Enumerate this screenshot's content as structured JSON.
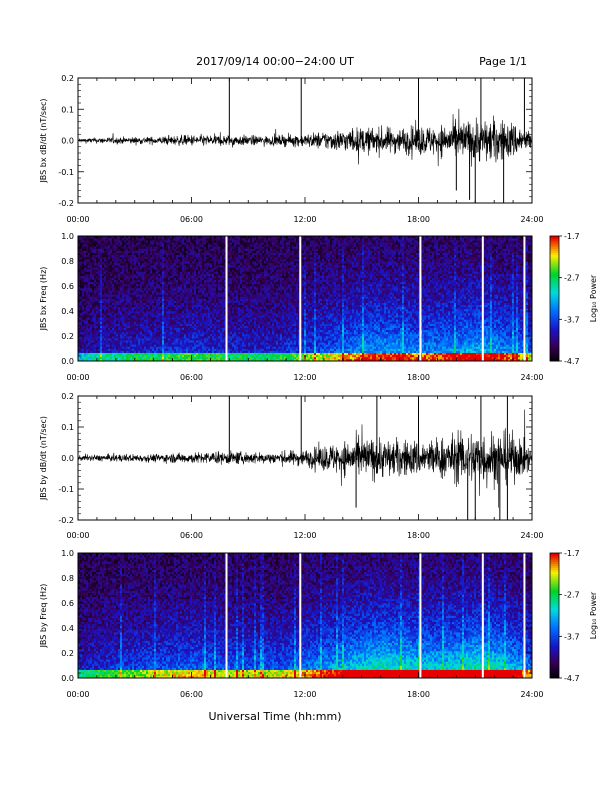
{
  "header": {
    "title": "2017/09/14  00:00−24:00 UT",
    "page": "Page 1/1"
  },
  "xlabel": "Universal Time (hh:mm)",
  "colors": {
    "line": "#000000",
    "background": "#ffffff"
  },
  "chart_data": [
    {
      "type": "line",
      "ylabel": "JBS bx dB/dt (nT/sec)",
      "x_ticks": [
        "00:00",
        "06:00",
        "12:00",
        "18:00",
        "24:00"
      ],
      "xlim": [
        0,
        24
      ],
      "ylim": [
        -0.2,
        0.2
      ],
      "y_ticks": [
        "-0.2",
        "-0.1",
        "0.0",
        "0.1",
        "0.2"
      ],
      "envelope": {
        "hours": [
          0,
          2,
          4,
          6,
          8,
          10,
          12,
          13,
          14,
          15,
          16,
          17,
          18,
          19,
          20,
          21,
          22,
          23,
          24
        ],
        "amplitude": [
          0.012,
          0.018,
          0.02,
          0.03,
          0.03,
          0.025,
          0.035,
          0.05,
          0.06,
          0.07,
          0.07,
          0.07,
          0.08,
          0.08,
          0.1,
          0.12,
          0.12,
          0.1,
          0.05
        ]
      },
      "spikes": [
        {
          "hour": 8.0,
          "y": 0.2
        },
        {
          "hour": 11.8,
          "y": 0.2
        },
        {
          "hour": 18.0,
          "y": 0.2
        },
        {
          "hour": 21.3,
          "y": 0.2
        },
        {
          "hour": 23.6,
          "y": 0.2
        },
        {
          "hour": 20.0,
          "y": -0.16
        },
        {
          "hour": 20.7,
          "y": -0.19
        },
        {
          "hour": 21.0,
          "y": -0.2
        },
        {
          "hour": 22.5,
          "y": -0.2
        }
      ]
    },
    {
      "type": "heatmap",
      "ylabel": "JBS bx Freq (Hz)",
      "x_ticks": [
        "00:00",
        "06:00",
        "12:00",
        "18:00",
        "24:00"
      ],
      "xlim": [
        0,
        24
      ],
      "ylim": [
        0.0,
        1.0
      ],
      "y_ticks": [
        "0.0",
        "0.2",
        "0.4",
        "0.6",
        "0.8",
        "1.0"
      ],
      "colorbar": {
        "label": "Log₁₀ Power",
        "ticks": [
          "-1.7",
          "-2.7",
          "-3.7",
          "-4.7"
        ],
        "range": [
          -4.7,
          -1.7
        ]
      },
      "data_gaps_hours": [
        7.85,
        11.75,
        18.1,
        21.4,
        23.6
      ],
      "activity": {
        "hours": [
          0,
          2,
          4,
          6,
          8,
          10,
          12,
          14,
          15,
          16,
          17,
          18,
          20,
          21,
          22,
          23,
          24
        ],
        "level": [
          0.15,
          0.22,
          0.25,
          0.28,
          0.25,
          0.24,
          0.3,
          0.42,
          0.48,
          0.5,
          0.5,
          0.45,
          0.5,
          0.55,
          0.52,
          0.45,
          0.35
        ]
      }
    },
    {
      "type": "line",
      "ylabel": "JBS by dB/dt (nT/sec)",
      "x_ticks": [
        "00:00",
        "06:00",
        "12:00",
        "18:00",
        "24:00"
      ],
      "xlim": [
        0,
        24
      ],
      "ylim": [
        -0.2,
        0.2
      ],
      "y_ticks": [
        "-0.2",
        "-0.1",
        "0.0",
        "0.1",
        "0.2"
      ],
      "envelope": {
        "hours": [
          0,
          2,
          4,
          6,
          8,
          10,
          12,
          13,
          14,
          15,
          16,
          17,
          18,
          19,
          20,
          21,
          22,
          23,
          24
        ],
        "amplitude": [
          0.015,
          0.02,
          0.022,
          0.03,
          0.035,
          0.03,
          0.045,
          0.07,
          0.09,
          0.11,
          0.11,
          0.1,
          0.1,
          0.11,
          0.13,
          0.15,
          0.15,
          0.13,
          0.06
        ]
      },
      "spikes": [
        {
          "hour": 8.0,
          "y": 0.2
        },
        {
          "hour": 11.8,
          "y": 0.2
        },
        {
          "hour": 15.8,
          "y": 0.2
        },
        {
          "hour": 18.0,
          "y": 0.2
        },
        {
          "hour": 21.3,
          "y": 0.2
        },
        {
          "hour": 22.7,
          "y": 0.2
        },
        {
          "hour": 14.7,
          "y": -0.16
        },
        {
          "hour": 20.6,
          "y": -0.2
        },
        {
          "hour": 21.0,
          "y": -0.2
        },
        {
          "hour": 22.3,
          "y": -0.2
        },
        {
          "hour": 22.7,
          "y": -0.2
        }
      ]
    },
    {
      "type": "heatmap",
      "ylabel": "JBS by Freq (Hz)",
      "x_ticks": [
        "00:00",
        "06:00",
        "12:00",
        "18:00",
        "24:00"
      ],
      "xlim": [
        0,
        24
      ],
      "ylim": [
        0.0,
        1.0
      ],
      "y_ticks": [
        "0.0",
        "0.2",
        "0.4",
        "0.6",
        "0.8",
        "1.0"
      ],
      "colorbar": {
        "label": "Log₁₀ Power",
        "ticks": [
          "-1.7",
          "-2.7",
          "-3.7",
          "-4.7"
        ],
        "range": [
          -4.7,
          -1.7
        ]
      },
      "data_gaps_hours": [
        7.85,
        11.75,
        18.1,
        21.4,
        23.6
      ],
      "activity": {
        "hours": [
          0,
          2,
          4,
          6,
          8,
          10,
          12,
          14,
          15,
          16,
          17,
          18,
          20,
          21,
          22,
          23,
          24
        ],
        "level": [
          0.22,
          0.3,
          0.35,
          0.4,
          0.36,
          0.35,
          0.42,
          0.55,
          0.62,
          0.68,
          0.66,
          0.6,
          0.62,
          0.68,
          0.66,
          0.56,
          0.42
        ]
      }
    }
  ]
}
